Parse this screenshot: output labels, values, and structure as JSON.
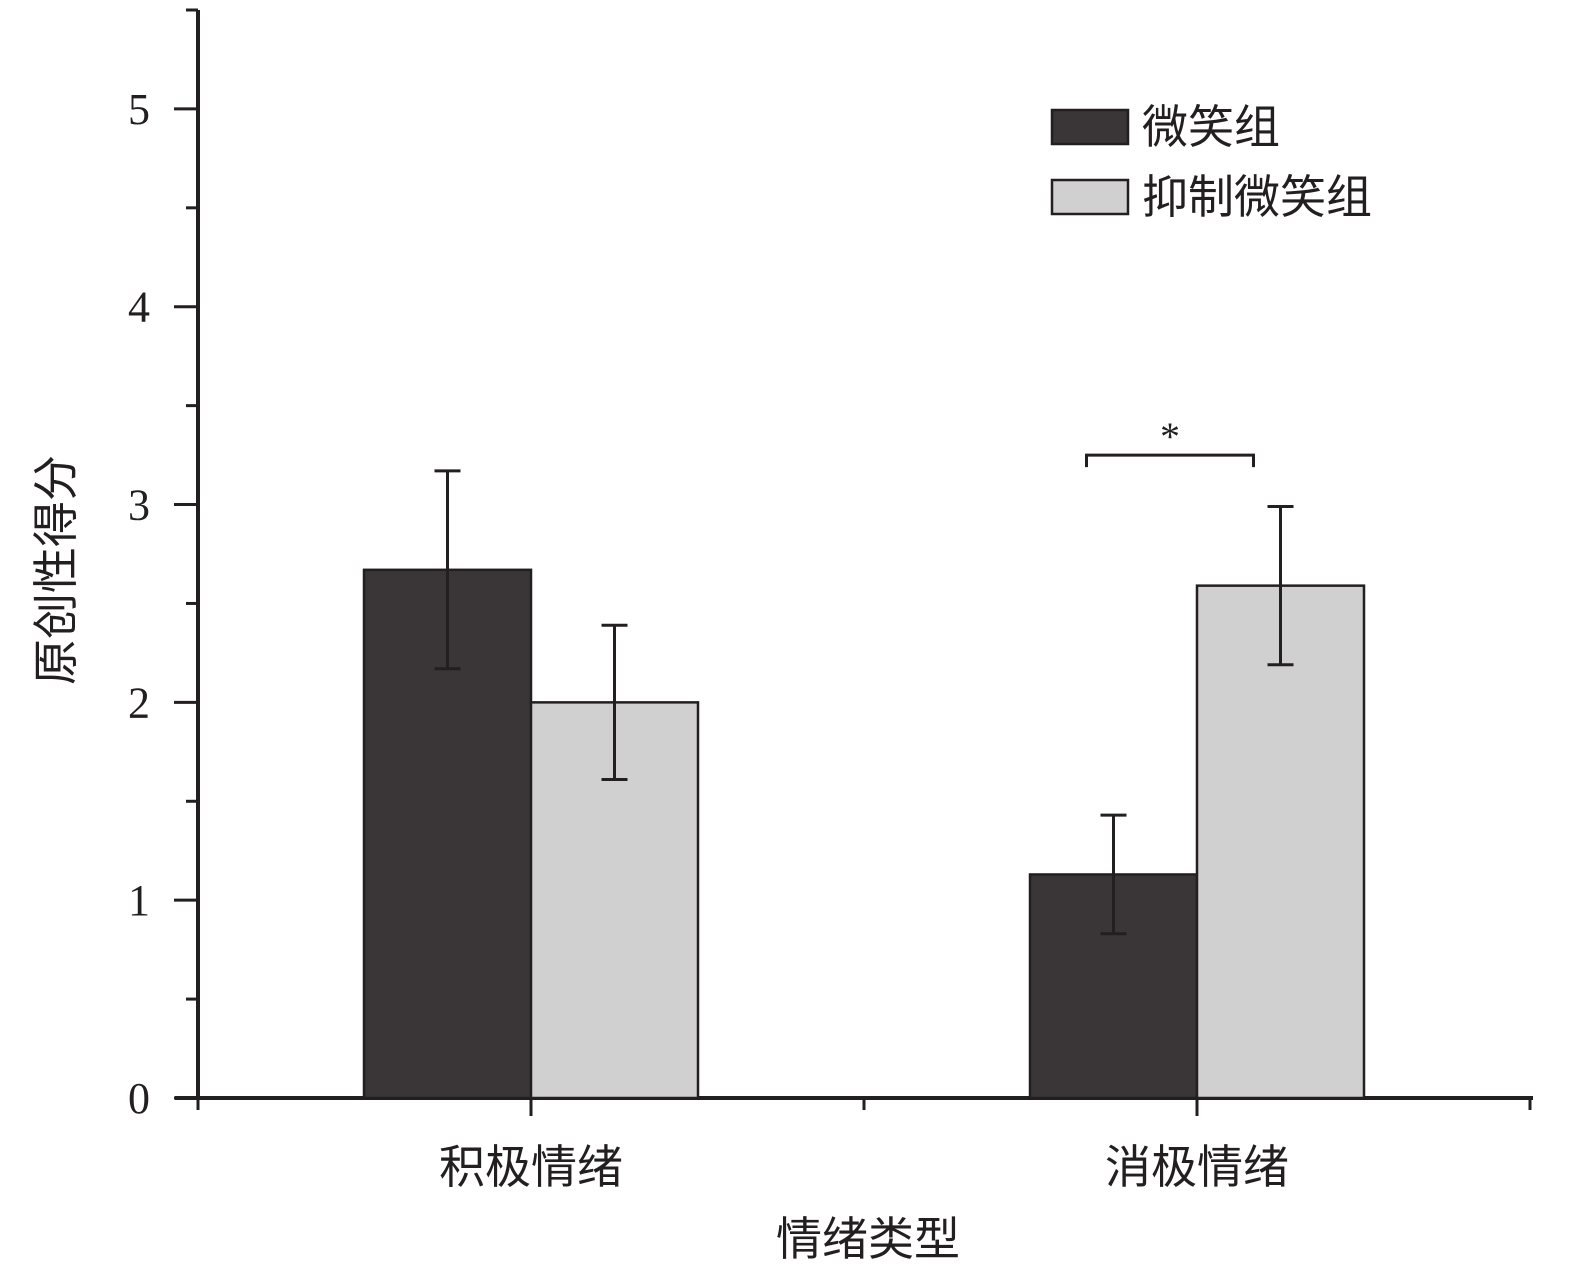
{
  "chart_data": {
    "type": "bar",
    "title": "",
    "xlabel": "情绪类型",
    "ylabel": "原创性得分",
    "categories": [
      "积极情绪",
      "消极情绪"
    ],
    "series": [
      {
        "name": "微笑组",
        "values": [
          2.67,
          1.13
        ],
        "errors": [
          0.5,
          0.3
        ],
        "color": "#3a3637"
      },
      {
        "name": "抑制微笑组",
        "values": [
          2.0,
          2.59
        ],
        "errors": [
          0.39,
          0.4
        ],
        "color": "#d0d0d0"
      }
    ],
    "ylim": [
      0,
      5.5
    ],
    "yticks": [
      0,
      1,
      2,
      3,
      4,
      5
    ],
    "grid": false,
    "legend_position": "top-right",
    "annotations": [
      {
        "text": "*",
        "category": "消极情绪",
        "between_series": [
          "微笑组",
          "抑制微笑组"
        ],
        "y": 3.25
      }
    ]
  }
}
